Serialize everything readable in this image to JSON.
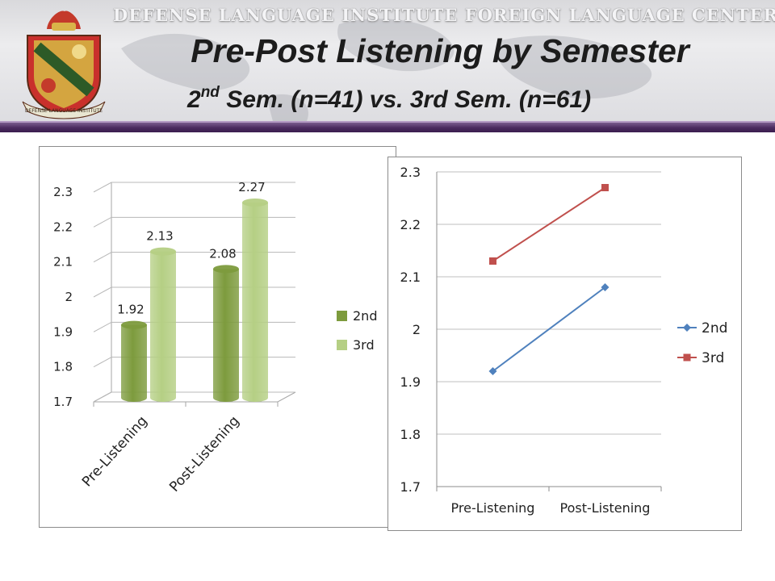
{
  "banner": {
    "institution": "DEFENSE LANGUAGE INSTITUTE FOREIGN LANGUAGE CENTER",
    "crest_ribbon": "DEFENSE LANGUAGE INSTITUTE",
    "accent_color": "#4a2a5e"
  },
  "slide": {
    "title": "Pre-Post Listening by Semester",
    "subtitle_ordinal": "2",
    "subtitle_sup": "nd",
    "subtitle_rest": " Sem. (n=41) vs. 3rd Sem. (n=61)"
  },
  "chart_data": [
    {
      "type": "bar",
      "style": "3d clustered columns",
      "categories": [
        "Pre-Listening",
        "Post-Listening"
      ],
      "series": [
        {
          "name": "2nd",
          "values": [
            1.92,
            2.08
          ],
          "color": "#7d9b3d"
        },
        {
          "name": "3rd",
          "values": [
            2.13,
            2.27
          ],
          "color": "#b5cf84"
        }
      ],
      "data_labels": [
        "1.92",
        "2.13",
        "2.08",
        "2.27"
      ],
      "ylim": [
        1.7,
        2.3
      ],
      "yticks": [
        "1.7",
        "1.8",
        "1.9",
        "2",
        "2.1",
        "2.2",
        "2.3"
      ],
      "grid": true,
      "legend": "right"
    },
    {
      "type": "line",
      "categories": [
        "Pre-Listening",
        "Post-Listening"
      ],
      "series": [
        {
          "name": "2nd",
          "values": [
            1.92,
            2.08
          ],
          "color": "#4f81bd",
          "marker": "diamond"
        },
        {
          "name": "3rd",
          "values": [
            2.13,
            2.27
          ],
          "color": "#c0504d",
          "marker": "square"
        }
      ],
      "ylim": [
        1.7,
        2.3
      ],
      "yticks": [
        "1.7",
        "1.8",
        "1.9",
        "2",
        "2.1",
        "2.2",
        "2.3"
      ],
      "grid": true,
      "legend": "right"
    }
  ]
}
